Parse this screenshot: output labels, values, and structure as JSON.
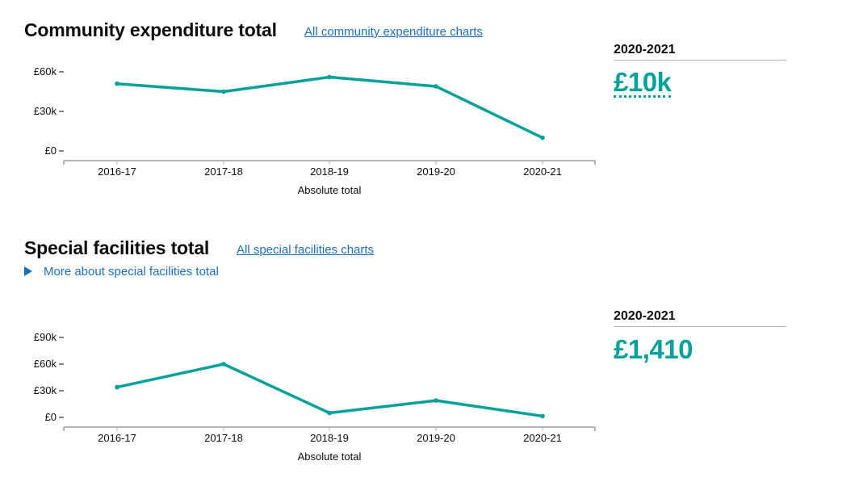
{
  "sections": [
    {
      "title": "Community expenditure total",
      "link": "All community expenditure charts",
      "latest": {
        "year": "2020-2021",
        "value": "£10k"
      }
    },
    {
      "title": "Special facilities total",
      "link": "All special facilities charts",
      "details": "More about special facilities total",
      "latest": {
        "year": "2020-2021",
        "value": "£1,410"
      }
    }
  ],
  "chart_data": [
    {
      "type": "line",
      "categories": [
        "2016-17",
        "2017-18",
        "2018-19",
        "2019-20",
        "2020-21"
      ],
      "series": [
        {
          "values": [
            51000,
            45000,
            56000,
            49000,
            10000
          ]
        }
      ],
      "ytick_values": [
        0,
        30000,
        60000
      ],
      "yticks": [
        "£0",
        "£30k",
        "£60k"
      ],
      "xlabel": "Absolute total",
      "ylim": [
        0,
        60000
      ],
      "color": "#00a19a"
    },
    {
      "type": "line",
      "categories": [
        "2016-17",
        "2017-18",
        "2018-19",
        "2019-20",
        "2020-21"
      ],
      "series": [
        {
          "values": [
            34000,
            60000,
            5000,
            19000,
            1410
          ]
        }
      ],
      "ytick_values": [
        0,
        30000,
        60000,
        90000
      ],
      "yticks": [
        "£0",
        "£30k",
        "£60k",
        "£90k"
      ],
      "xlabel": "Absolute total",
      "ylim": [
        0,
        90000
      ],
      "color": "#00a19a"
    }
  ]
}
